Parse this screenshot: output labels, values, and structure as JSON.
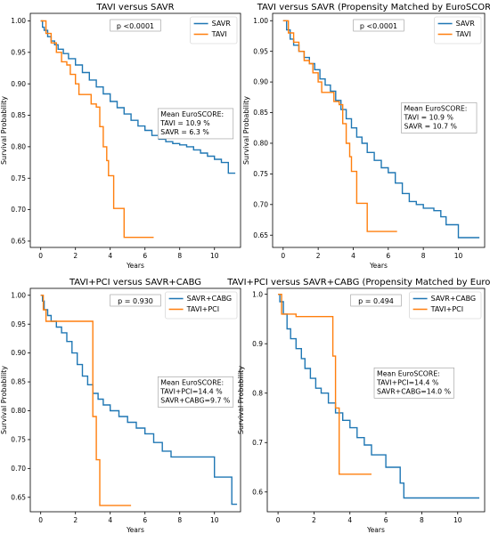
{
  "chart_data": [
    {
      "type": "line",
      "title": "TAVI versus SAVR",
      "xlabel": "Years",
      "ylabel": "Survival Probability",
      "xlim": [
        -0.6,
        11.5
      ],
      "ylim": [
        0.64,
        1.012
      ],
      "xticks": [
        0,
        2,
        4,
        6,
        8,
        10
      ],
      "yticks": [
        0.65,
        0.7,
        0.75,
        0.8,
        0.85,
        0.9,
        0.95,
        1.0
      ],
      "ytick_labels": [
        "0.65",
        "0.70",
        "0.75",
        "0.80",
        "0.85",
        "0.90",
        "0.95",
        "1.00"
      ],
      "legend_position": "top-right",
      "p_value": "p <0.0001",
      "annotation": [
        "Mean EuroSCORE:",
        "TAVI = 10.9 %",
        "SAVR = 6.3 %"
      ],
      "annotation_x": 6.9,
      "annotation_y": 0.848,
      "series": [
        {
          "name": "SAVR",
          "color": "#1f77b4",
          "points": [
            [
              0,
              1.0
            ],
            [
              0.1,
              0.99
            ],
            [
              0.2,
              0.985
            ],
            [
              0.4,
              0.975
            ],
            [
              0.6,
              0.968
            ],
            [
              0.8,
              0.962
            ],
            [
              1,
              0.955
            ],
            [
              1.3,
              0.948
            ],
            [
              1.6,
              0.94
            ],
            [
              2,
              0.93
            ],
            [
              2.4,
              0.918
            ],
            [
              2.8,
              0.906
            ],
            [
              3.2,
              0.895
            ],
            [
              3.6,
              0.884
            ],
            [
              4,
              0.872
            ],
            [
              4.4,
              0.862
            ],
            [
              4.8,
              0.852
            ],
            [
              5.2,
              0.842
            ],
            [
              5.6,
              0.833
            ],
            [
              6,
              0.826
            ],
            [
              6.4,
              0.818
            ],
            [
              6.8,
              0.812
            ],
            [
              7.2,
              0.808
            ],
            [
              7.6,
              0.805
            ],
            [
              8,
              0.803
            ],
            [
              8.4,
              0.8
            ],
            [
              8.8,
              0.795
            ],
            [
              9.2,
              0.79
            ],
            [
              9.6,
              0.785
            ],
            [
              10,
              0.78
            ],
            [
              10.4,
              0.775
            ],
            [
              10.8,
              0.758
            ],
            [
              11.2,
              0.758
            ]
          ]
        },
        {
          "name": "TAVI",
          "color": "#ff7f0e",
          "points": [
            [
              0,
              1.0
            ],
            [
              0.3,
              0.98
            ],
            [
              0.6,
              0.965
            ],
            [
              0.9,
              0.95
            ],
            [
              1.2,
              0.935
            ],
            [
              1.5,
              0.93
            ],
            [
              1.7,
              0.915
            ],
            [
              2.0,
              0.9
            ],
            [
              2.2,
              0.883
            ],
            [
              2.8,
              0.883
            ],
            [
              2.9,
              0.868
            ],
            [
              3.2,
              0.863
            ],
            [
              3.4,
              0.832
            ],
            [
              3.6,
              0.8
            ],
            [
              3.8,
              0.778
            ],
            [
              3.9,
              0.754
            ],
            [
              4.1,
              0.754
            ],
            [
              4.2,
              0.702
            ],
            [
              4.7,
              0.702
            ],
            [
              4.8,
              0.656
            ],
            [
              6.5,
              0.656
            ]
          ]
        }
      ]
    },
    {
      "type": "line",
      "title": "TAVI versus SAVR (Propensity Matched by EuroSCORE)",
      "xlabel": "Years",
      "ylabel": "Survival Probability",
      "xlim": [
        -0.6,
        11.5
      ],
      "ylim": [
        0.63,
        1.012
      ],
      "xticks": [
        0,
        2,
        4,
        6,
        8,
        10
      ],
      "yticks": [
        0.65,
        0.7,
        0.75,
        0.8,
        0.85,
        0.9,
        0.95,
        1.0
      ],
      "ytick_labels": [
        "0.65",
        "0.70",
        "0.75",
        "0.80",
        "0.85",
        "0.90",
        "0.95",
        "1.00"
      ],
      "legend_position": "top-right",
      "p_value": "p <0.0001",
      "annotation": [
        "Mean EuroSCORE:",
        "TAVI = 10.9 %",
        "SAVR = 10.7 %"
      ],
      "annotation_x": 6.9,
      "annotation_y": 0.853,
      "series": [
        {
          "name": "SAVR",
          "color": "#1f77b4",
          "points": [
            [
              0,
              1.0
            ],
            [
              0.2,
              0.985
            ],
            [
              0.4,
              0.97
            ],
            [
              0.6,
              0.96
            ],
            [
              0.9,
              0.95
            ],
            [
              1.2,
              0.94
            ],
            [
              1.5,
              0.93
            ],
            [
              1.8,
              0.92
            ],
            [
              2.1,
              0.905
            ],
            [
              2.4,
              0.895
            ],
            [
              2.7,
              0.885
            ],
            [
              3,
              0.87
            ],
            [
              3.3,
              0.855
            ],
            [
              3.6,
              0.84
            ],
            [
              3.9,
              0.825
            ],
            [
              4.2,
              0.81
            ],
            [
              4.5,
              0.8
            ],
            [
              4.8,
              0.785
            ],
            [
              5.2,
              0.772
            ],
            [
              5.6,
              0.76
            ],
            [
              6,
              0.752
            ],
            [
              6.4,
              0.735
            ],
            [
              6.8,
              0.718
            ],
            [
              7.2,
              0.705
            ],
            [
              7.6,
              0.7
            ],
            [
              8,
              0.694
            ],
            [
              8.6,
              0.69
            ],
            [
              9,
              0.68
            ],
            [
              9.3,
              0.667
            ],
            [
              10,
              0.646
            ],
            [
              11.2,
              0.646
            ]
          ]
        },
        {
          "name": "TAVI",
          "color": "#ff7f0e",
          "points": [
            [
              0,
              1.0
            ],
            [
              0.3,
              0.98
            ],
            [
              0.6,
              0.965
            ],
            [
              0.9,
              0.95
            ],
            [
              1.2,
              0.935
            ],
            [
              1.5,
              0.93
            ],
            [
              1.7,
              0.915
            ],
            [
              2.0,
              0.9
            ],
            [
              2.2,
              0.883
            ],
            [
              2.8,
              0.883
            ],
            [
              2.9,
              0.868
            ],
            [
              3.2,
              0.863
            ],
            [
              3.4,
              0.832
            ],
            [
              3.6,
              0.8
            ],
            [
              3.8,
              0.778
            ],
            [
              3.9,
              0.754
            ],
            [
              4.1,
              0.754
            ],
            [
              4.2,
              0.702
            ],
            [
              4.7,
              0.702
            ],
            [
              4.8,
              0.656
            ],
            [
              6.5,
              0.656
            ]
          ]
        }
      ]
    },
    {
      "type": "line",
      "title": "TAVI+PCI versus SAVR+CABG",
      "xlabel": "Years",
      "ylabel": "Survival Probability",
      "xlim": [
        -0.6,
        11.5
      ],
      "ylim": [
        0.625,
        1.012
      ],
      "xticks": [
        0,
        2,
        4,
        6,
        8,
        10
      ],
      "yticks": [
        0.65,
        0.7,
        0.75,
        0.8,
        0.85,
        0.9,
        0.95,
        1.0
      ],
      "ytick_labels": [
        "0.65",
        "0.70",
        "0.75",
        "0.80",
        "0.85",
        "0.90",
        "0.95",
        "1.00"
      ],
      "legend_position": "top-right",
      "p_value": "p = 0.930",
      "annotation": [
        "Mean EuroSCORE:",
        "TAVI+PCI=14.4 %",
        "SAVR+CABG=9.7 %"
      ],
      "annotation_x": 6.9,
      "annotation_y": 0.845,
      "series": [
        {
          "name": "SAVR+CABG",
          "color": "#1f77b4",
          "points": [
            [
              0,
              1.0
            ],
            [
              0.1,
              0.99
            ],
            [
              0.2,
              0.975
            ],
            [
              0.4,
              0.965
            ],
            [
              0.6,
              0.955
            ],
            [
              0.9,
              0.945
            ],
            [
              1.2,
              0.935
            ],
            [
              1.5,
              0.92
            ],
            [
              1.8,
              0.9
            ],
            [
              2.1,
              0.88
            ],
            [
              2.4,
              0.86
            ],
            [
              2.7,
              0.845
            ],
            [
              3,
              0.83
            ],
            [
              3.3,
              0.82
            ],
            [
              3.6,
              0.81
            ],
            [
              4,
              0.8
            ],
            [
              4.5,
              0.79
            ],
            [
              5,
              0.78
            ],
            [
              5.5,
              0.77
            ],
            [
              6,
              0.76
            ],
            [
              6.5,
              0.745
            ],
            [
              7,
              0.73
            ],
            [
              7.5,
              0.72
            ],
            [
              9.5,
              0.72
            ],
            [
              10,
              0.685
            ],
            [
              10.8,
              0.685
            ],
            [
              11,
              0.638
            ],
            [
              11.3,
              0.638
            ]
          ]
        },
        {
          "name": "TAVI+PCI",
          "color": "#ff7f0e",
          "points": [
            [
              0,
              1.0
            ],
            [
              0.15,
              0.975
            ],
            [
              0.3,
              0.955
            ],
            [
              2.8,
              0.955
            ],
            [
              3.0,
              0.79
            ],
            [
              3.2,
              0.715
            ],
            [
              3.4,
              0.636
            ],
            [
              5.2,
              0.636
            ]
          ]
        }
      ]
    },
    {
      "type": "line",
      "title": "TAVI+PCI versus SAVR+CABG (Propensity Matched by EuroSCORE)",
      "xlabel": "Years",
      "ylabel": "Survival Probability",
      "xlim": [
        -0.6,
        11.5
      ],
      "ylim": [
        0.56,
        1.012
      ],
      "xticks": [
        0,
        2,
        4,
        6,
        8,
        10
      ],
      "yticks": [
        0.6,
        0.7,
        0.8,
        0.9,
        1.0
      ],
      "ytick_labels": [
        "0.6",
        "0.7",
        "0.8",
        "0.9",
        "1.0"
      ],
      "legend_position": "top-right",
      "p_value": "p = 0.494",
      "annotation": [
        "Mean EuroSCORE:",
        "TAVI+PCI=14.4 %",
        "SAVR+CABG=14.0 %"
      ],
      "annotation_x": 5.5,
      "annotation_y": 0.835,
      "series": [
        {
          "name": "SAVR+CABG",
          "color": "#1f77b4",
          "points": [
            [
              0,
              1.0
            ],
            [
              0.1,
              0.985
            ],
            [
              0.3,
              0.96
            ],
            [
              0.5,
              0.93
            ],
            [
              0.7,
              0.91
            ],
            [
              1,
              0.89
            ],
            [
              1.3,
              0.87
            ],
            [
              1.5,
              0.85
            ],
            [
              1.8,
              0.83
            ],
            [
              2.1,
              0.81
            ],
            [
              2.4,
              0.8
            ],
            [
              2.8,
              0.78
            ],
            [
              3.2,
              0.76
            ],
            [
              3.6,
              0.745
            ],
            [
              4,
              0.73
            ],
            [
              4.4,
              0.71
            ],
            [
              4.8,
              0.695
            ],
            [
              5.2,
              0.675
            ],
            [
              6,
              0.65
            ],
            [
              6.8,
              0.618
            ],
            [
              7,
              0.588
            ],
            [
              11.2,
              0.588
            ]
          ]
        },
        {
          "name": "TAVI+PCI",
          "color": "#ff7f0e",
          "points": [
            [
              0,
              1.0
            ],
            [
              0.2,
              0.96
            ],
            [
              1,
              0.955
            ],
            [
              3,
              0.955
            ],
            [
              3.05,
              0.875
            ],
            [
              3.2,
              0.77
            ],
            [
              3.4,
              0.636
            ],
            [
              5.2,
              0.636
            ]
          ]
        }
      ]
    }
  ]
}
